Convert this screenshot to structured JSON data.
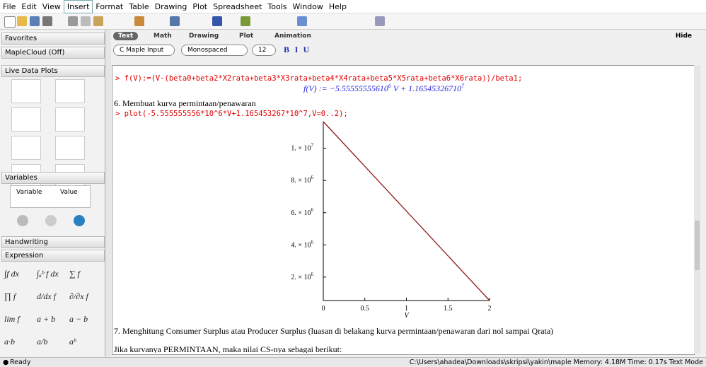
{
  "menu": [
    "File",
    "Edit",
    "View",
    "Insert",
    "Format",
    "Table",
    "Drawing",
    "Plot",
    "Spreadsheet",
    "Tools",
    "Window",
    "Help"
  ],
  "palettes": {
    "favorites": "Favorites",
    "cloud": "MapleCloud (Off)",
    "live": "Live Data Plots",
    "variables": {
      "title": "Variables",
      "columns": [
        "Variable",
        "Value"
      ]
    },
    "handwriting": "Handwriting",
    "expression": {
      "title": "Expression",
      "items": [
        "∫f dx",
        "∫ₐᵇ f dx",
        "∑ f",
        "∏ f",
        "d/dx f",
        "∂/∂x f",
        "lim f",
        "a + b",
        "a − b",
        "a·b",
        "a/b",
        "aᵇ"
      ]
    }
  },
  "tabs": [
    "Text",
    "Math",
    "Drawing",
    "Plot",
    "Animation"
  ],
  "hide": "Hide",
  "format": {
    "mode": "C Maple Input",
    "font": "Monospaced",
    "size": "12",
    "styles": [
      "B",
      "I",
      "U"
    ]
  },
  "document": {
    "input1": "> f(V):=(V-(beta0+beta2*X2rata+beta3*X3rata+beta4*X4rata+beta5*X5rata+beta6*X6rata))/beta1;",
    "output1": [
      "f(V) := −5.55555555610",
      "6",
      " V + 1.16545326710",
      "7"
    ],
    "heading6": "6. Membuat kurva permintaan/penawaran",
    "input2": "> plot(-5.555555556*10^6*V+1.165453267*10^7,V=0..2);",
    "heading7": "7. Menghitung Consumer Surplus atau Producer Surplus (luasan di belakang kurva permintaan/penawaran dari nol sampai Qrata)",
    "text8": "Jika kurvanya PERMINTAAN, maka nilai CS-nya sebagai berikut:"
  },
  "chart_data": {
    "type": "line",
    "x": [
      0,
      2
    ],
    "values": [
      11654532.67,
      543421.56
    ],
    "color": "#8b1a1a",
    "xlim": [
      0,
      2
    ],
    "ylim": [
      543421.56,
      11654532.67
    ],
    "xlabel": "V",
    "xticks": [
      0,
      0.5,
      1,
      1.5,
      2
    ],
    "yticks": [
      {
        "value": 2000000,
        "label": "2. × 10",
        "exp": "6"
      },
      {
        "value": 4000000,
        "label": "4. × 10",
        "exp": "6"
      },
      {
        "value": 6000000,
        "label": "6. × 10",
        "exp": "6"
      },
      {
        "value": 8000000,
        "label": "8. × 10",
        "exp": "6"
      },
      {
        "value": 10000000,
        "label": "1. × 10",
        "exp": "7"
      }
    ]
  },
  "status": {
    "left": "Ready",
    "right": "C:\\Users\\ahadea\\Downloads\\skripsi\\yakin\\maple   Memory: 4.18M   Time: 0.17s   Text Mode"
  }
}
